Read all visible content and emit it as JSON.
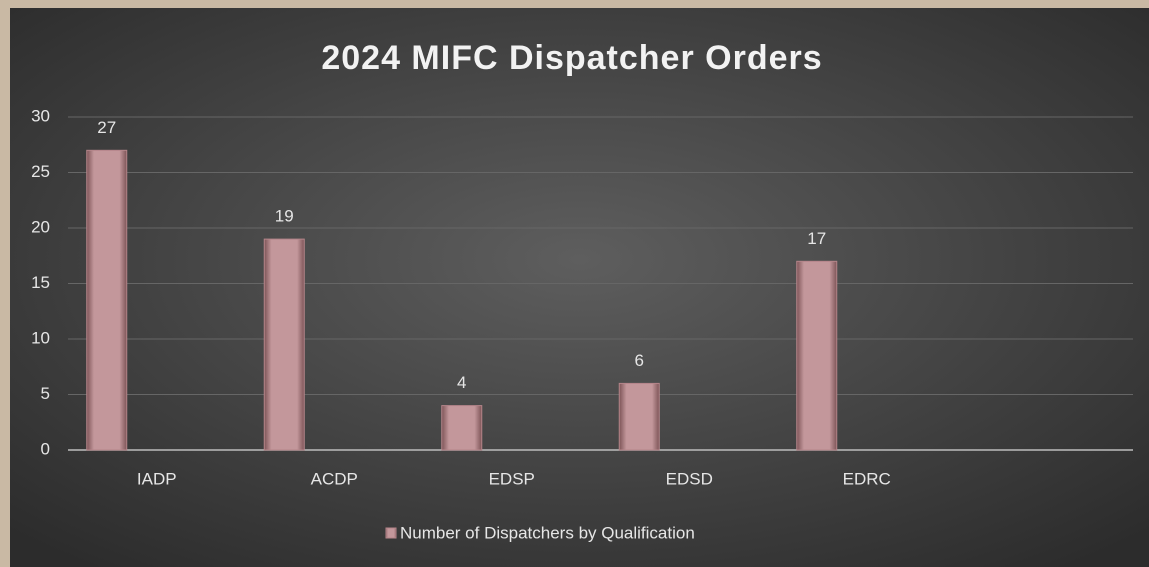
{
  "chart_data": {
    "type": "bar",
    "title": "2024 MIFC Dispatcher Orders",
    "categories": [
      "IADP",
      "ACDP",
      "EDSP",
      "EDSD",
      "EDRC",
      null
    ],
    "series": [
      {
        "name": "Number of Dispatchers by Qualification",
        "color": "#b5858a",
        "values": [
          27,
          19,
          4,
          6,
          17,
          null
        ]
      }
    ],
    "ylim": [
      0,
      30
    ],
    "yticks": [
      0,
      5,
      10,
      15,
      20,
      25,
      30
    ],
    "grid": true,
    "legend": "bottom"
  }
}
